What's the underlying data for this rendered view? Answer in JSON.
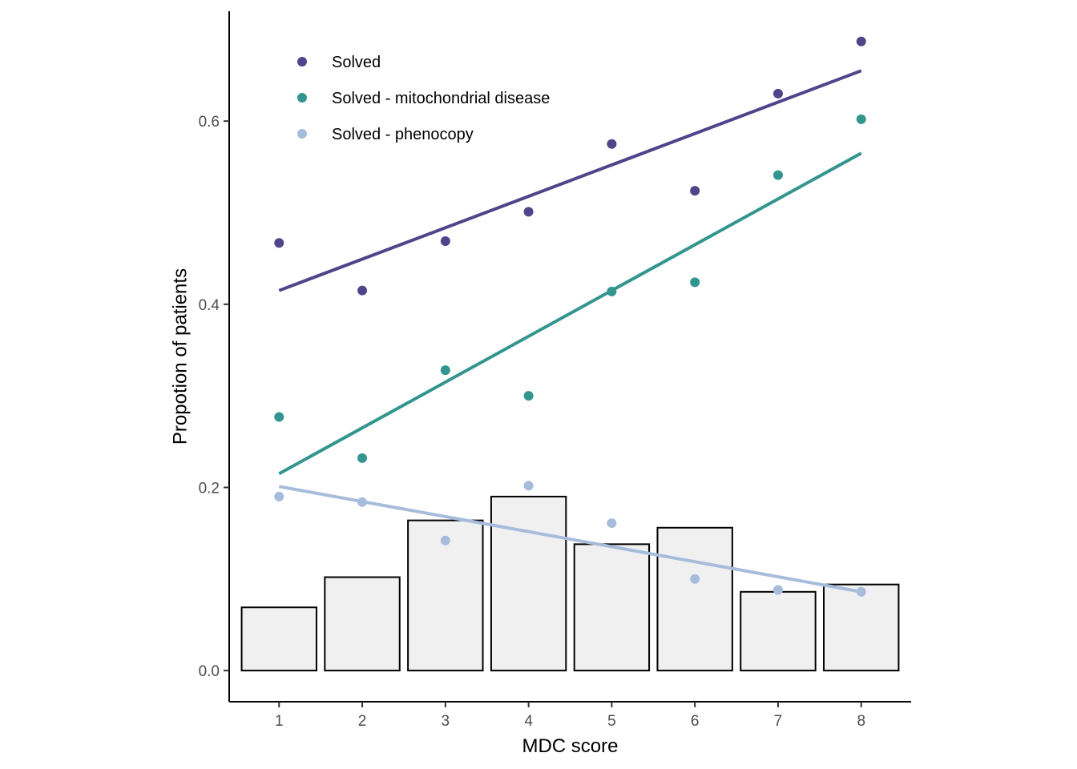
{
  "chart_data": {
    "type": "bar",
    "title": "",
    "xlabel": "MDC score",
    "ylabel": "Propotion of patients",
    "x": [
      1,
      2,
      3,
      4,
      5,
      6,
      7,
      8
    ],
    "xlim": [
      0.4,
      8.6
    ],
    "ylim": [
      -0.034,
      0.72
    ],
    "x_ticks": [
      1,
      2,
      3,
      4,
      5,
      6,
      7,
      8
    ],
    "y_ticks": [
      0.0,
      0.2,
      0.4,
      0.6
    ],
    "y_tick_labels": [
      "0.0",
      "0.2",
      "0.4",
      "0.6"
    ],
    "grid": false,
    "legend_position": "top-left",
    "bars": {
      "values": [
        0.069,
        0.102,
        0.164,
        0.19,
        0.138,
        0.156,
        0.086,
        0.094
      ],
      "fill": "#f0f0f0",
      "stroke": "#000000"
    },
    "series": [
      {
        "name": "Solved",
        "color": "#50448a",
        "points": [
          0.467,
          0.415,
          0.469,
          0.501,
          0.575,
          0.524,
          0.63,
          0.687
        ],
        "trend": [
          0.415,
          0.655
        ]
      },
      {
        "name": "Solved - mitochondrial disease",
        "color": "#33958f",
        "points": [
          0.277,
          0.232,
          0.328,
          0.3,
          0.414,
          0.424,
          0.541,
          0.602
        ],
        "trend": [
          0.215,
          0.565
        ]
      },
      {
        "name": "Solved - phenocopy",
        "color": "#a7bcdb",
        "points": [
          0.19,
          0.184,
          0.142,
          0.202,
          0.161,
          0.1,
          0.088,
          0.086
        ],
        "trend": [
          0.201,
          0.086
        ]
      }
    ]
  }
}
